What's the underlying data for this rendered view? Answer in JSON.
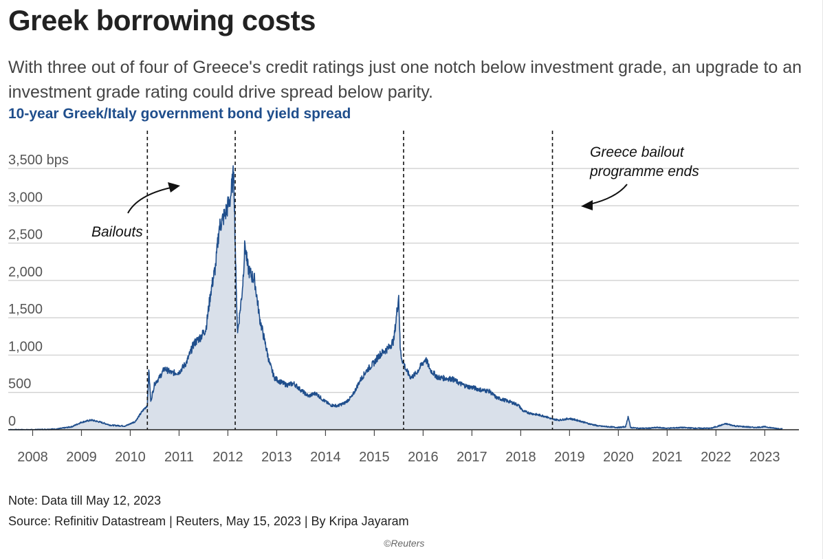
{
  "header": {
    "title": "Greek borrowing costs",
    "subtitle": "With three out of four of Greece's credit ratings just one notch below investment grade, an upgrade to an investment grade rating could drive spread below parity.",
    "chart_title": "10-year Greek/Italy government bond yield spread"
  },
  "footer": {
    "note": "Note: Data till May 12, 2023",
    "source": "Source: Refinitiv Datastream | Reuters, May 15, 2023 | By Kripa Jayaram",
    "credit": "©Reuters"
  },
  "colors": {
    "line": "#1f4e8c",
    "area": "#d9e0ea",
    "grid": "#cccccc",
    "chart_title": "#1f4e8c"
  },
  "chart_data": {
    "type": "area",
    "title": "10-year Greek/Italy government bond yield spread",
    "xlabel": "",
    "ylabel": "",
    "x_unit": "year",
    "xlim": [
      2007.5,
      2023.7
    ],
    "ylim": [
      0,
      3500
    ],
    "y_ticks": [
      0,
      500,
      1000,
      1500,
      2000,
      2500,
      3000,
      3500
    ],
    "y_tick_labels": [
      "0",
      "500",
      "1,000",
      "1,500",
      "2,000",
      "2,500",
      "3,000",
      "3,500 bps"
    ],
    "x_ticks": [
      2008,
      2009,
      2010,
      2011,
      2012,
      2013,
      2014,
      2015,
      2016,
      2017,
      2018,
      2019,
      2020,
      2021,
      2022,
      2023
    ],
    "x_tick_labels": [
      "2008",
      "2009",
      "2010",
      "2011",
      "2012",
      "2013",
      "2014",
      "2015",
      "2016",
      "2017",
      "2018",
      "2019",
      "2020",
      "2021",
      "2022",
      "2023"
    ],
    "grid": true,
    "series": [
      {
        "x": [
          2007.5,
          2008.0,
          2008.5,
          2008.8,
          2009.0,
          2009.2,
          2009.4,
          2009.6,
          2009.9,
          2010.1,
          2010.25,
          2010.35,
          2010.38,
          2010.42,
          2010.5,
          2010.6,
          2010.7,
          2010.85,
          2011.0,
          2011.15,
          2011.3,
          2011.45,
          2011.55,
          2011.65,
          2011.75,
          2011.82,
          2011.88,
          2011.95,
          2012.05,
          2012.12,
          2012.17,
          2012.2,
          2012.25,
          2012.3,
          2012.35,
          2012.4,
          2012.45,
          2012.55,
          2012.65,
          2012.75,
          2012.85,
          2012.95,
          2013.05,
          2013.2,
          2013.35,
          2013.5,
          2013.65,
          2013.8,
          2013.95,
          2014.1,
          2014.25,
          2014.4,
          2014.55,
          2014.7,
          2014.85,
          2015.0,
          2015.1,
          2015.2,
          2015.3,
          2015.4,
          2015.5,
          2015.53,
          2015.56,
          2015.6,
          2015.65,
          2015.75,
          2015.85,
          2015.95,
          2016.05,
          2016.15,
          2016.3,
          2016.45,
          2016.6,
          2016.75,
          2016.9,
          2017.05,
          2017.2,
          2017.35,
          2017.5,
          2017.65,
          2017.8,
          2017.95,
          2018.05,
          2018.2,
          2018.35,
          2018.5,
          2018.65,
          2018.8,
          2019.0,
          2019.2,
          2019.4,
          2019.6,
          2019.8,
          2020.0,
          2020.15,
          2020.2,
          2020.25,
          2020.4,
          2020.6,
          2020.8,
          2021.0,
          2021.3,
          2021.6,
          2021.9,
          2022.1,
          2022.2,
          2022.4,
          2022.6,
          2022.8,
          2023.0,
          2023.2,
          2023.36
        ],
        "y": [
          0,
          0,
          10,
          40,
          100,
          130,
          100,
          60,
          50,
          110,
          250,
          330,
          800,
          380,
          620,
          700,
          820,
          760,
          770,
          900,
          1150,
          1250,
          1350,
          1850,
          2200,
          2700,
          2800,
          2900,
          3100,
          3450,
          1900,
          1300,
          1600,
          1900,
          2500,
          2200,
          2100,
          2000,
          1500,
          1200,
          900,
          700,
          650,
          600,
          620,
          530,
          450,
          490,
          400,
          330,
          320,
          360,
          450,
          650,
          800,
          900,
          1000,
          1050,
          1100,
          1200,
          1800,
          1100,
          950,
          900,
          800,
          700,
          750,
          850,
          950,
          800,
          700,
          690,
          680,
          620,
          580,
          560,
          530,
          520,
          430,
          400,
          370,
          330,
          250,
          220,
          200,
          180,
          140,
          130,
          150,
          120,
          80,
          50,
          40,
          30,
          40,
          180,
          30,
          20,
          20,
          30,
          20,
          30,
          20,
          20,
          60,
          80,
          50,
          40,
          30,
          40,
          20,
          10
        ]
      }
    ],
    "vertical_lines": [
      2010.35,
      2012.15,
      2015.6,
      2018.65
    ],
    "annotations": [
      {
        "text": "Bailouts"
      },
      {
        "text": "Greece bailout programme ends"
      }
    ]
  }
}
